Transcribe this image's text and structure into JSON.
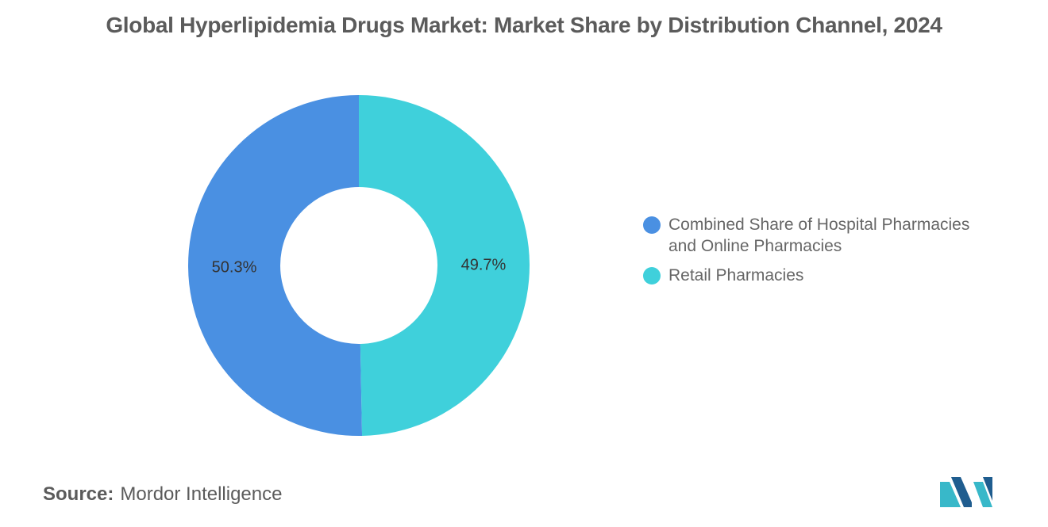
{
  "chart_data": {
    "type": "pie",
    "donut": true,
    "title": "Global Hyperlipidemia Drugs Market: Market Share by Distribution Channel, 2024",
    "slices": [
      {
        "label": "Combined Share of Hospital Pharmacies and Online Pharmacies",
        "value": 50.3,
        "display": "50.3%",
        "color": "#4a90e2"
      },
      {
        "label": "Retail Pharmacies",
        "value": 49.7,
        "display": "49.7%",
        "color": "#3fd0db"
      }
    ],
    "legend_position": "right"
  },
  "source": {
    "label": "Source:",
    "text": "Mordor Intelligence"
  },
  "colors": {
    "title": "#5b5b5b",
    "logo_dark": "#1f5d8f",
    "logo_light": "#38b8c9"
  }
}
